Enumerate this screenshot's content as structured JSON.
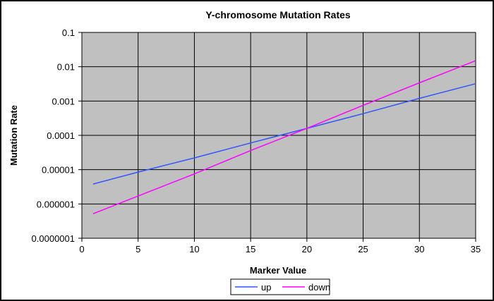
{
  "chart_data": {
    "type": "line",
    "title": "Y-chromosome Mutation Rates",
    "xlabel": "Marker Value",
    "ylabel": "Mutation Rate",
    "x_range": [
      0,
      35
    ],
    "x_ticks": [
      0,
      5,
      10,
      15,
      20,
      25,
      30,
      35
    ],
    "x_tick_labels": [
      "0",
      "5",
      "10",
      "15",
      "20",
      "25",
      "30",
      "35"
    ],
    "y_scale": "log",
    "y_range": [
      1e-07,
      0.1
    ],
    "y_ticks": [
      1e-07,
      1e-06,
      1e-05,
      0.0001,
      0.001,
      0.01,
      0.1
    ],
    "y_tick_labels": [
      "0.0000001",
      "0.000001",
      "0.00001",
      "0.0001",
      "0.001",
      "0.01",
      "0.1"
    ],
    "grid": true,
    "plot_background": "#c0c0c0",
    "legend_position": "bottom",
    "series": [
      {
        "name": "up",
        "color": "#3355ff",
        "x": [
          1,
          5,
          10,
          15,
          20,
          25,
          30,
          35
        ],
        "y": [
          3.8e-06,
          8.5e-06,
          2.2e-05,
          6e-05,
          0.00016,
          0.00043,
          0.0012,
          0.0032
        ]
      },
      {
        "name": "down",
        "color": "#ff00ff",
        "x": [
          1,
          5,
          10,
          15,
          20,
          25,
          30,
          35
        ],
        "y": [
          5.2e-07,
          1.7e-06,
          7.5e-06,
          3.6e-05,
          0.00016,
          0.00075,
          0.0034,
          0.015
        ]
      }
    ]
  }
}
